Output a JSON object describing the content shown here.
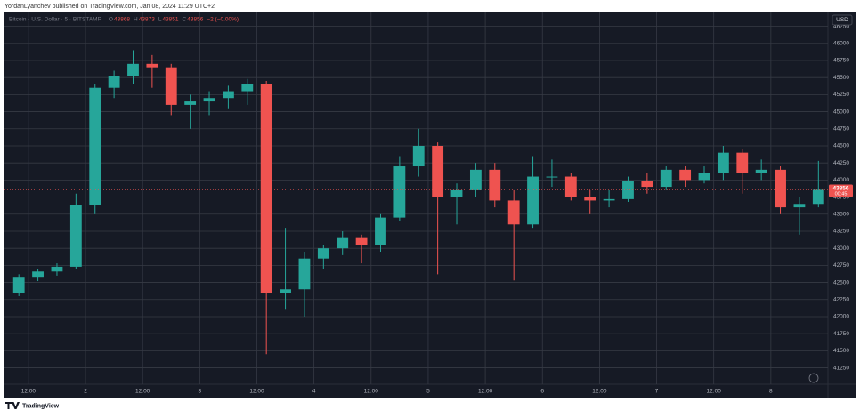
{
  "header": {
    "text": "YordanLyanchev published on TradingView.com, Jan 08, 2024 11:29 UTC+2"
  },
  "footer": {
    "brand": "TradingView"
  },
  "chart_data": {
    "type": "candlestick",
    "symbol": "Bitcoin · U.S. Dollar · 5 · BITSTAMP",
    "legend": [
      {
        "label": "O",
        "value": 43868
      },
      {
        "label": "H",
        "value": 43873
      },
      {
        "label": "L",
        "value": 43851
      },
      {
        "label": "C",
        "value": 43856
      }
    ],
    "change": "−2 (−0.00%)",
    "currency": "USD",
    "last_price": {
      "value": 43856,
      "countdown": "00:45"
    },
    "up_color": "#26a69a",
    "down_color": "#ef5350",
    "grid": true,
    "categories": [
      null,
      "12:00",
      null,
      null,
      "2",
      null,
      null,
      "12:00",
      null,
      null,
      "3",
      null,
      null,
      "12:00",
      null,
      null,
      "4",
      null,
      null,
      "12:00",
      null,
      null,
      "5",
      null,
      null,
      "12:00",
      null,
      null,
      "6",
      null,
      null,
      "12:00",
      null,
      null,
      "7",
      null,
      null,
      "12:00",
      null,
      null,
      "8",
      null,
      null
    ],
    "open": [
      42350,
      42570,
      42660,
      42730,
      43640,
      45350,
      45520,
      45700,
      45650,
      45100,
      45150,
      45200,
      45300,
      45400,
      42350,
      42400,
      42850,
      43000,
      43150,
      43050,
      43450,
      44200,
      44500,
      43750,
      43850,
      44150,
      43700,
      43350,
      44050,
      44050,
      43750,
      43700,
      43720,
      43980,
      43900,
      44150,
      44000,
      44100,
      44400,
      44100,
      44150,
      43600,
      43650
    ],
    "high": [
      42620,
      42700,
      42780,
      43800,
      45400,
      45600,
      45900,
      45830,
      45700,
      45250,
      45300,
      45380,
      45480,
      45450,
      43300,
      42950,
      43050,
      43250,
      43200,
      43500,
      44350,
      44750,
      44550,
      43950,
      44250,
      44250,
      43850,
      44350,
      44300,
      44100,
      43850,
      43850,
      44050,
      44100,
      44200,
      44200,
      44200,
      44500,
      44450,
      44300,
      44200,
      43750,
      44280
    ],
    "low": [
      42300,
      42520,
      42600,
      42700,
      43500,
      45200,
      45400,
      45350,
      44950,
      44750,
      44950,
      45050,
      45100,
      41450,
      42100,
      42000,
      42700,
      42900,
      42780,
      42950,
      43400,
      44050,
      42620,
      43350,
      43750,
      43600,
      42530,
      43300,
      43900,
      43700,
      43500,
      43600,
      43680,
      43800,
      43850,
      43900,
      43950,
      44000,
      43800,
      44000,
      43500,
      43200,
      43600
    ],
    "close": [
      42570,
      42660,
      42730,
      43640,
      45350,
      45520,
      45700,
      45650,
      45100,
      45150,
      45200,
      45300,
      45400,
      42350,
      42400,
      42850,
      43000,
      43150,
      43050,
      43450,
      44200,
      44500,
      43750,
      43850,
      44150,
      43700,
      43350,
      44050,
      44050,
      43750,
      43700,
      43720,
      43980,
      43900,
      44150,
      44000,
      44100,
      44400,
      44100,
      44150,
      43600,
      43650,
      43856
    ],
    "ylim": [
      41010,
      46440
    ],
    "yticks": [
      41250,
      41500,
      41750,
      42000,
      42250,
      42500,
      42750,
      43000,
      43250,
      43500,
      43750,
      44000,
      44250,
      44500,
      44750,
      45000,
      45250,
      45500,
      45750,
      46000,
      46250
    ]
  }
}
